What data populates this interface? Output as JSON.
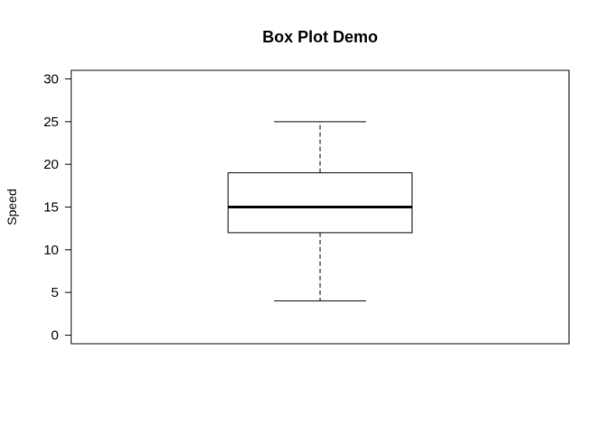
{
  "chart_data": {
    "type": "box",
    "title": "Box Plot Demo",
    "xlabel": "",
    "ylabel": "Speed",
    "ylim": [
      -1,
      31
    ],
    "yticks": [
      0,
      5,
      10,
      15,
      20,
      25,
      30
    ],
    "grid": false,
    "legend": "none",
    "boxes": [
      {
        "whisker_low": 4,
        "q1": 12,
        "median": 15,
        "q3": 19,
        "whisker_high": 25
      }
    ]
  }
}
